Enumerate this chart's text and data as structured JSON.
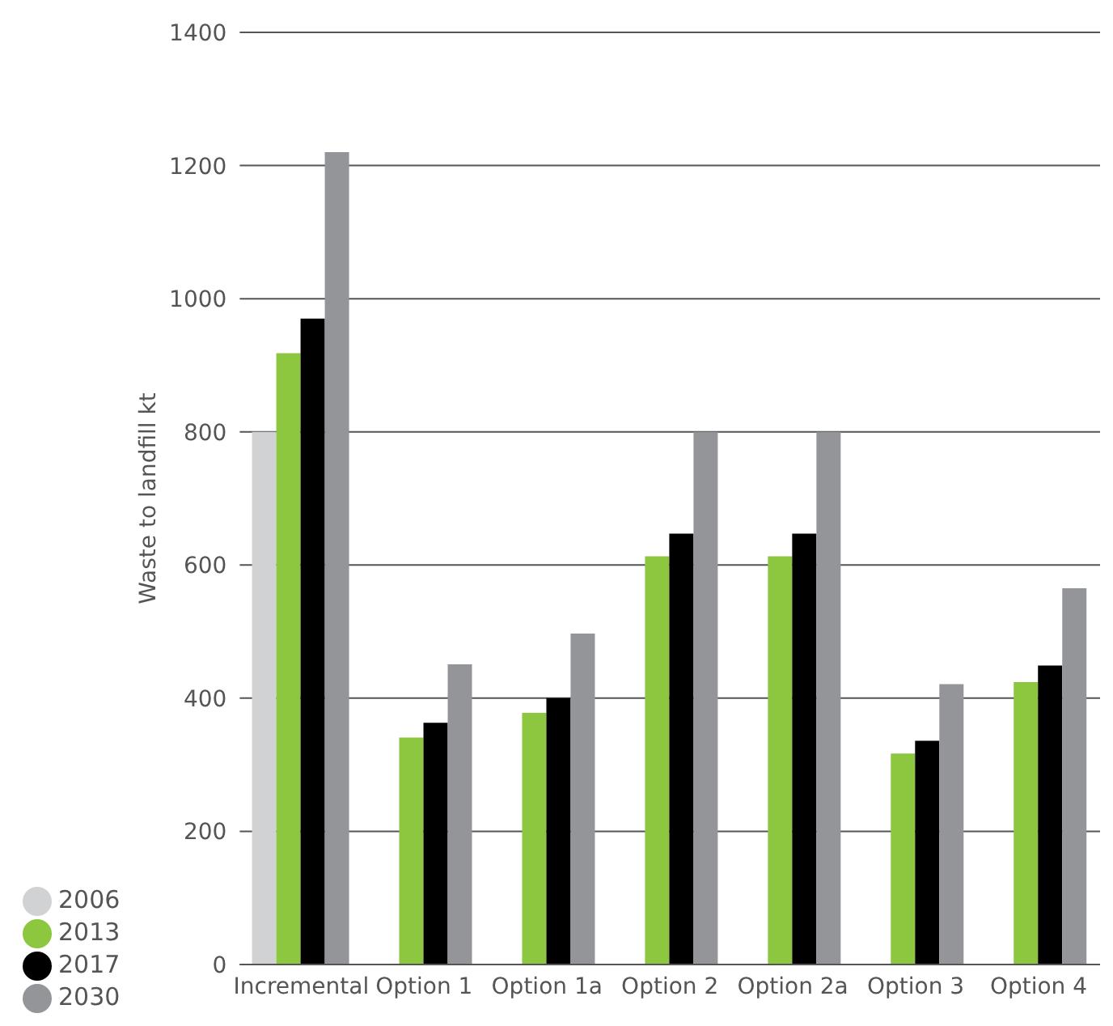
{
  "chart_data": {
    "type": "bar",
    "ylabel": "Waste to landfill kt",
    "categories": [
      "Incremental",
      "Option 1",
      "Option 1a",
      "Option 2",
      "Option 2a",
      "Option 3",
      "Option 4"
    ],
    "series": [
      {
        "name": "2006",
        "color": "#d1d2d4",
        "values": [
          800,
          null,
          null,
          null,
          null,
          null,
          null
        ]
      },
      {
        "name": "2013",
        "color": "#8dc63f",
        "values": [
          918,
          341,
          378,
          613,
          613,
          317,
          424
        ]
      },
      {
        "name": "2017",
        "color": "#000000",
        "values": [
          970,
          363,
          400,
          647,
          647,
          336,
          449
        ]
      },
      {
        "name": "2030",
        "color": "#939598",
        "values": [
          1220,
          451,
          497,
          800,
          800,
          421,
          565
        ]
      }
    ],
    "ylim": [
      0,
      1400
    ],
    "yticks": [
      0,
      200,
      400,
      600,
      800,
      1000,
      1200,
      1400
    ],
    "grid": "y",
    "legend": "bottom left"
  }
}
